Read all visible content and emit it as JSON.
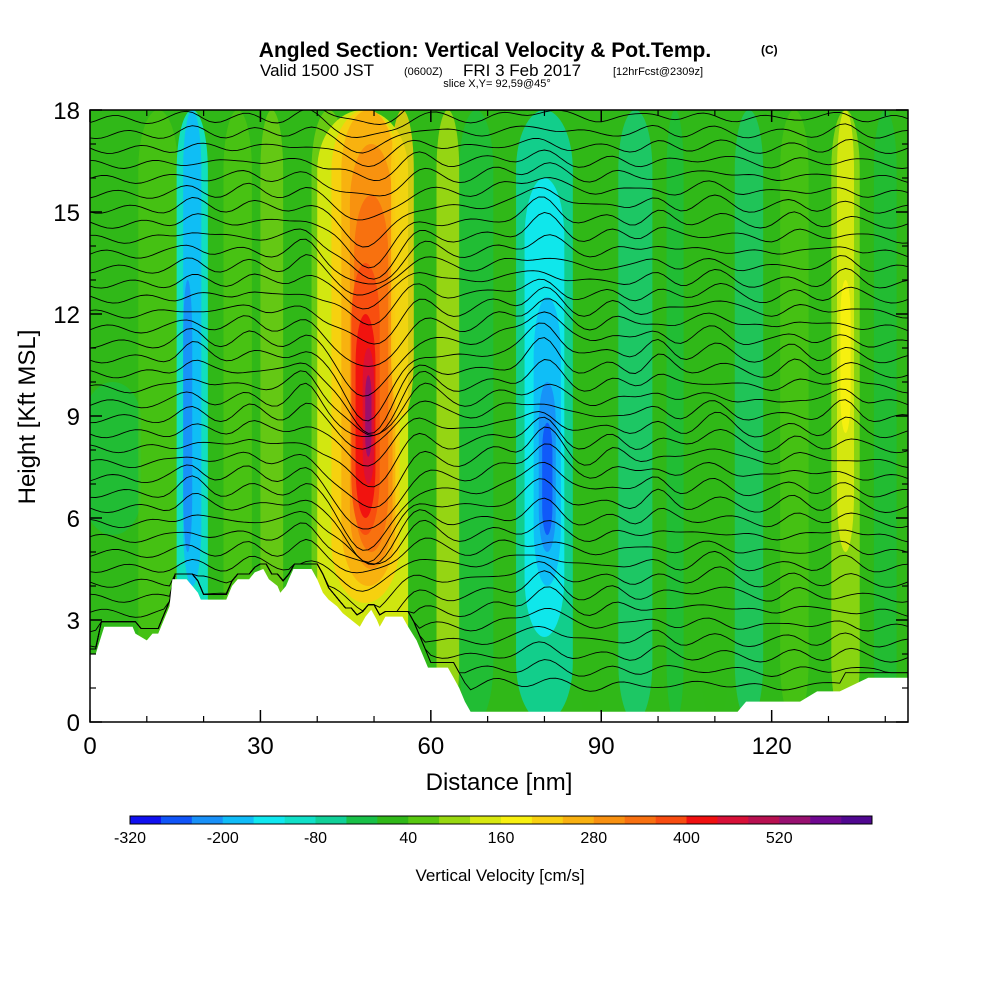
{
  "header": {
    "title": "Angled Section: Vertical Velocity & Pot.Temp.",
    "title_tag": "(C)",
    "valid_prefix": "Valid 1500 JST",
    "valid_utc": "(0600Z)",
    "valid_date": "FRI 3 Feb 2017",
    "forecast": "[12hrFcst@2309z]",
    "slice": "slice X,Y= 92,59@45°"
  },
  "chart_data": {
    "type": "heatmap",
    "xlabel": "Distance [nm]",
    "ylabel": "Height [Kft MSL]",
    "xlim": [
      0,
      144
    ],
    "ylim": [
      0,
      18
    ],
    "xticks": [
      0,
      30,
      60,
      90,
      120
    ],
    "yticks": [
      0,
      3,
      6,
      9,
      12,
      15,
      18
    ],
    "grid": false,
    "fill_field": "Vertical Velocity [cm/s]",
    "contour_field": "Pot.Temp.",
    "colorbar": {
      "title": "Vertical Velocity [cm/s]",
      "levels_min": -320,
      "levels_step": 40,
      "colors": [
        "#1010f0",
        "#1054f8",
        "#1890f8",
        "#10bcf8",
        "#10e8f0",
        "#10e0c8",
        "#10d098",
        "#18c048",
        "#30b818",
        "#58c810",
        "#98d810",
        "#d8e810",
        "#f8f010",
        "#f8d010",
        "#f8b010",
        "#f89010",
        "#f87010",
        "#f84c10",
        "#f01010",
        "#d81038",
        "#b81050",
        "#981070",
        "#700890",
        "#500890"
      ],
      "tick_labels": [
        "-320",
        "-200",
        "-80",
        "40",
        "160",
        "280",
        "400",
        "520"
      ]
    },
    "terrain_kft": [
      [
        0,
        2.0
      ],
      [
        1,
        2.0
      ],
      [
        2.5,
        2.8
      ],
      [
        7.5,
        2.8
      ],
      [
        8,
        2.6
      ],
      [
        10,
        2.4
      ],
      [
        11,
        2.6
      ],
      [
        12,
        2.6
      ],
      [
        13,
        3.0
      ],
      [
        14,
        3.4
      ],
      [
        14.5,
        4.2
      ],
      [
        17,
        4.2
      ],
      [
        18,
        4.0
      ],
      [
        19,
        3.8
      ],
      [
        19.5,
        3.6
      ],
      [
        24,
        3.6
      ],
      [
        25,
        4.0
      ],
      [
        26,
        4.2
      ],
      [
        28,
        4.2
      ],
      [
        29,
        4.4
      ],
      [
        30.5,
        4.5
      ],
      [
        31.5,
        4.2
      ],
      [
        33,
        4.0
      ],
      [
        33.5,
        3.8
      ],
      [
        34.5,
        4.0
      ],
      [
        35,
        4.2
      ],
      [
        35.8,
        4.5
      ],
      [
        39,
        4.5
      ],
      [
        40,
        4.2
      ],
      [
        41,
        3.8
      ],
      [
        42,
        3.6
      ],
      [
        43.5,
        3.4
      ],
      [
        44.5,
        3.2
      ],
      [
        46,
        3.0
      ],
      [
        47.5,
        2.8
      ],
      [
        48.5,
        3.1
      ],
      [
        49.5,
        3.3
      ],
      [
        50.5,
        3.0
      ],
      [
        51,
        2.8
      ],
      [
        52,
        3.1
      ],
      [
        55,
        3.1
      ],
      [
        56,
        2.8
      ],
      [
        57.5,
        2.4
      ],
      [
        58.5,
        2.0
      ],
      [
        59.5,
        1.6
      ],
      [
        63,
        1.6
      ],
      [
        64,
        1.3
      ],
      [
        65,
        1.0
      ],
      [
        66,
        0.6
      ],
      [
        67,
        0.3
      ],
      [
        68.5,
        0.3
      ],
      [
        84,
        0.3
      ],
      [
        114,
        0.3
      ],
      [
        115.5,
        0.6
      ],
      [
        125,
        0.6
      ],
      [
        128,
        0.9
      ],
      [
        132,
        0.9
      ],
      [
        137,
        1.3
      ],
      [
        144,
        1.3
      ]
    ]
  }
}
